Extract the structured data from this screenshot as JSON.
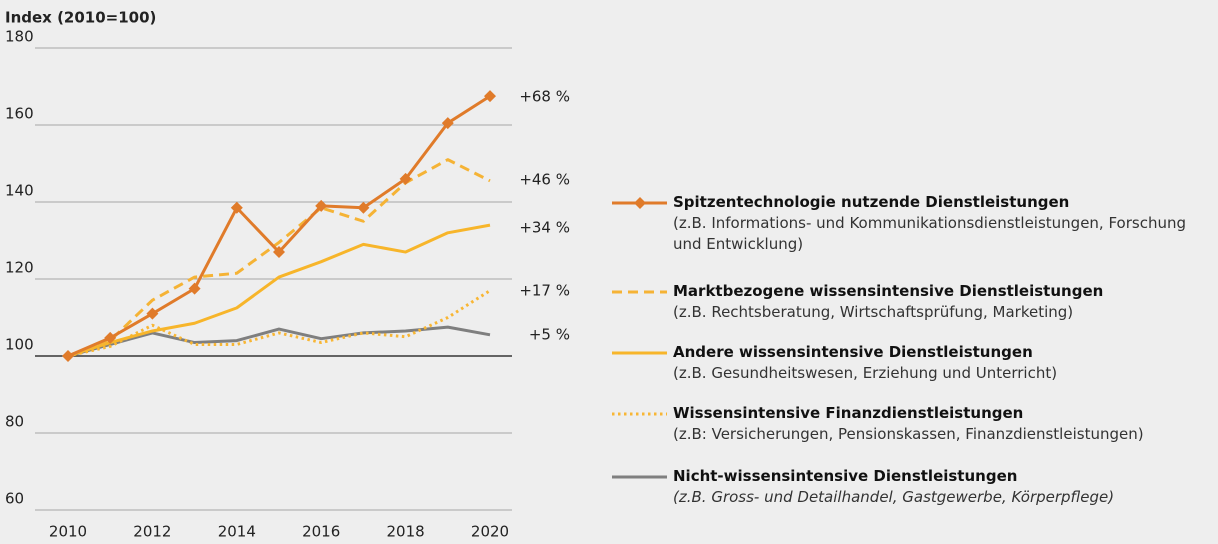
{
  "chart_data": {
    "type": "line",
    "y_axis_label": "Index (2010=100)",
    "x": [
      2010,
      2011,
      2012,
      2013,
      2014,
      2015,
      2016,
      2017,
      2018,
      2019,
      2020
    ],
    "xlim": [
      2010,
      2020
    ],
    "xticks": [
      2010,
      2012,
      2014,
      2016,
      2018,
      2020
    ],
    "ylim": [
      60,
      180
    ],
    "yticks": [
      60,
      80,
      100,
      120,
      140,
      160,
      180
    ],
    "baseline": 100,
    "grid": true,
    "series": [
      {
        "name": "Spitzentechnologie nutzende Dienstleistungen",
        "description": "(z.B. Informations- und Kommunikationsdienstleistungen, Forschung und Entwicklung)",
        "color": "#e07b2a",
        "style": "solid-marker",
        "end_label": "+68 %",
        "values": [
          100,
          104.7,
          111,
          117.5,
          138.5,
          127,
          139,
          138.5,
          146,
          160.5,
          167.5
        ]
      },
      {
        "name": "Marktbezogene wissensintensive Dienstleistungen",
        "description": "(z.B. Rechtsberatung, Wirtschaftsprüfung, Marketing)",
        "color": "#f5b335",
        "style": "dashed",
        "end_label": "+46 %",
        "values": [
          100,
          104,
          114.5,
          120.5,
          121.5,
          129.5,
          138.5,
          135,
          145,
          151,
          145.5
        ]
      },
      {
        "name": "Andere wissensintensive Dienstleistungen",
        "description": "(z.B. Gesundheitswesen, Erziehung und Unterricht)",
        "color": "#f7b52a",
        "style": "solid",
        "end_label": "+34 %",
        "values": [
          100,
          103.5,
          106.5,
          108.5,
          112.5,
          120.5,
          124.5,
          129,
          127,
          132,
          134
        ]
      },
      {
        "name": "Wissensintensive Finanzdienstleistungen",
        "description": "(z.B: Versicherungen, Pensionskassen, Finanzdienstleistungen)",
        "color": "#f8b634",
        "style": "dotted",
        "end_label": "+17 %",
        "values": [
          100,
          102.5,
          108,
          103,
          103,
          106,
          103.5,
          106,
          105,
          110,
          117
        ]
      },
      {
        "name": "Nicht-wissensintensive Dienstleistungen",
        "description": "(z.B. Gross- und Detailhandel, Gastgewerbe, Körperpflege)",
        "color": "#7f7f7f",
        "style": "solid",
        "italic_description": true,
        "end_label": "+5 %",
        "values": [
          100,
          103,
          106,
          103.5,
          104,
          107,
          104.5,
          106,
          106.5,
          107.5,
          105.5
        ]
      }
    ]
  }
}
